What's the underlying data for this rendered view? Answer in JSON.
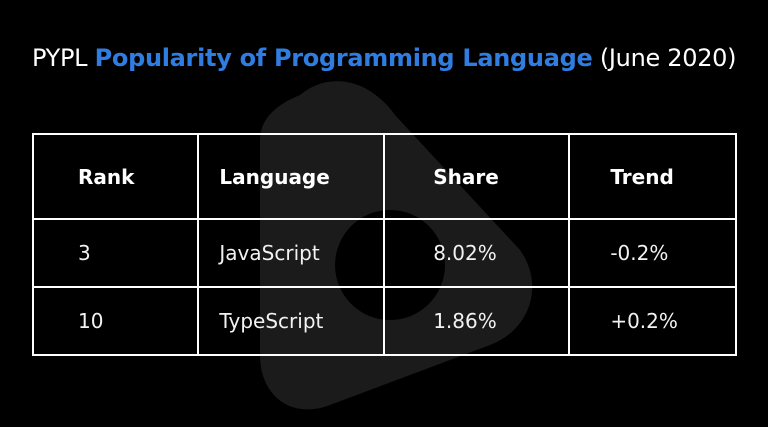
{
  "title": {
    "prefix": "PYPL",
    "highlight": "Popularity of Programming Language",
    "suffix": "(June 2020)"
  },
  "table": {
    "header": [
      "Rank",
      "Language",
      "Share",
      "Trend"
    ],
    "rows": [
      [
        "3",
        "JavaScript",
        "8.02%",
        "-0.2%"
      ],
      [
        "10",
        "TypeScript",
        "1.86%",
        "+0.2%"
      ]
    ]
  }
}
